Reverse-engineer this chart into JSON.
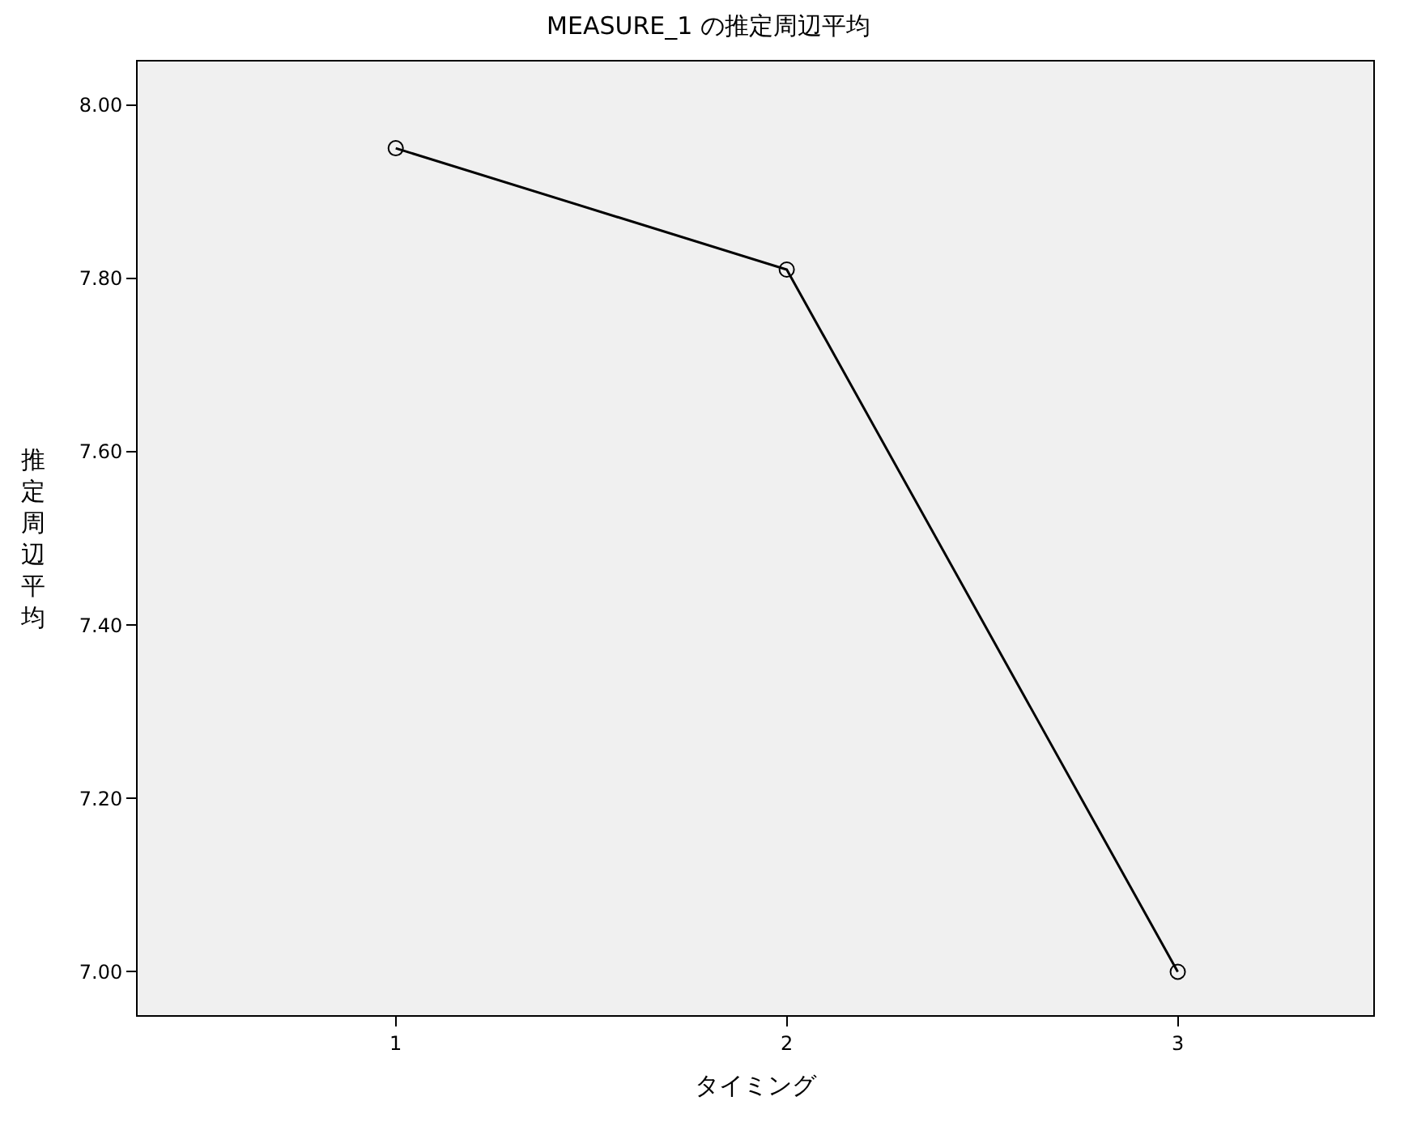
{
  "chart_data": {
    "type": "line",
    "title": "MEASURE_1 の推定周辺平均",
    "xlabel": "タイミング",
    "ylabel": "推定周辺平均",
    "categories": [
      "1",
      "2",
      "3"
    ],
    "series": [
      {
        "color": "#000000",
        "values": [
          7.95,
          7.81,
          7.0
        ]
      }
    ],
    "ylim": [
      6.95,
      8.05
    ],
    "yticks": [
      {
        "value": 7,
        "label": "7.00"
      },
      {
        "value": 7.2,
        "label": "7.20"
      },
      {
        "value": 7.4,
        "label": "7.40"
      },
      {
        "value": 7.6,
        "label": "7.60"
      },
      {
        "value": 7.8,
        "label": "7.80"
      },
      {
        "value": 8,
        "label": "8.00"
      }
    ],
    "marker": "circle",
    "line_style": "solid"
  }
}
